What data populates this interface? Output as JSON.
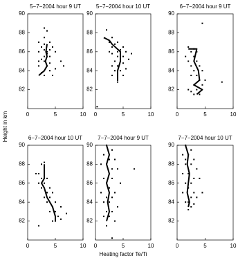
{
  "chart_data": [
    {
      "type": "scatter",
      "title": "5−7−2004 hour 9 UT",
      "xlim": [
        0,
        10
      ],
      "ylim": [
        80,
        90
      ],
      "xticks": [
        0,
        5,
        10
      ],
      "yticks": [
        82,
        84,
        86,
        88,
        90
      ],
      "color": "#000000",
      "x": [
        3,
        3.5,
        2,
        4,
        3,
        2.5,
        4.5,
        3,
        5,
        2,
        3.5,
        4,
        3,
        2.5,
        6,
        3,
        4,
        2,
        3.5,
        5,
        3,
        4,
        2.5,
        3,
        4.5,
        3,
        3.5,
        6.5,
        2,
        4
      ],
      "y": [
        88.5,
        88.2,
        87,
        87,
        86.8,
        86.5,
        86.5,
        86.2,
        86,
        86,
        85.8,
        85.5,
        85.5,
        85.2,
        85,
        85,
        84.8,
        84.5,
        84.5,
        84.2,
        84,
        84,
        83.8,
        83.5,
        83.5,
        87.5,
        86,
        84.5,
        85,
        86.2
      ],
      "line": {
        "x": [
          2,
          3,
          3.5,
          3.2,
          3.5,
          3.3,
          3.5
        ],
        "y": [
          83.5,
          84,
          84.5,
          85,
          85.5,
          86,
          86.8
        ]
      }
    },
    {
      "type": "scatter",
      "title": "5−7−2004 hour 10 UT",
      "xlim": [
        0,
        10
      ],
      "ylim": [
        80,
        90
      ],
      "xticks": [
        0,
        5,
        10
      ],
      "yticks": [
        82,
        84,
        86,
        88,
        90
      ],
      "color": "#000000",
      "x": [
        2,
        3,
        2.5,
        4,
        3.5,
        5,
        3,
        4.5,
        5.5,
        4,
        3,
        5,
        4,
        6,
        3.5,
        4.5,
        5,
        3,
        4,
        5.5,
        3.5,
        4.5,
        4,
        3,
        5,
        4,
        0.3,
        6.5,
        2.5,
        4
      ],
      "y": [
        88.3,
        87.5,
        87,
        87,
        86.8,
        86.5,
        86.5,
        86.2,
        86,
        86,
        85.8,
        85.5,
        85.5,
        85.2,
        85,
        85,
        84.8,
        84.5,
        84.5,
        84.2,
        84,
        84,
        83.8,
        83.5,
        83.5,
        83,
        80.2,
        85.8,
        86,
        82.8
      ],
      "line": {
        "x": [
          1.5,
          2.5,
          3,
          4.5,
          4.5,
          4,
          4
        ],
        "y": [
          87.5,
          87.2,
          86.8,
          86,
          85,
          84,
          83
        ]
      }
    },
    {
      "type": "scatter",
      "title": "6−7−2004 hour 9 UT",
      "xlim": [
        0,
        10
      ],
      "ylim": [
        80,
        90
      ],
      "xticks": [
        0,
        5,
        10
      ],
      "yticks": [
        82,
        84,
        86,
        88,
        90
      ],
      "color": "#000000",
      "x": [
        4.5,
        2,
        3,
        2.5,
        3.5,
        1.5,
        3,
        2,
        3.5,
        2.5,
        4,
        3,
        4.5,
        3.5,
        2.5,
        4,
        5,
        3,
        4.5,
        2,
        3.5,
        8,
        4,
        3,
        2.5
      ],
      "y": [
        89,
        86.5,
        86.3,
        86,
        86,
        85.5,
        85.5,
        85,
        85,
        84.5,
        84.5,
        84,
        84,
        83.5,
        83.5,
        83,
        83,
        82.5,
        82.5,
        82,
        82,
        82.8,
        81.5,
        81.5,
        81.8
      ],
      "line": {
        "x": [
          2,
          3.5,
          3,
          3.8,
          4,
          3,
          4.5,
          3.5
        ],
        "y": [
          86.3,
          86.3,
          85,
          84,
          83,
          82.5,
          82,
          81.5
        ]
      }
    },
    {
      "type": "scatter",
      "title": "6−7−2004 hour 10 UT",
      "ylabel": "Height in km",
      "xlim": [
        0,
        10
      ],
      "ylim": [
        80,
        90
      ],
      "xticks": [
        0,
        5,
        10
      ],
      "yticks": [
        82,
        84,
        86,
        88,
        90
      ],
      "color": "#000000",
      "x": [
        3,
        2.5,
        3,
        1.5,
        2,
        3,
        2.5,
        3.5,
        2,
        3,
        4,
        2.5,
        3.5,
        4.5,
        3,
        4,
        5,
        3.5,
        4.5,
        6,
        4,
        5,
        5.5,
        7,
        4.5,
        5,
        2,
        6
      ],
      "y": [
        88.2,
        88,
        87.5,
        87,
        87,
        86.8,
        86.5,
        86.5,
        86,
        86,
        85.5,
        85.5,
        85,
        85,
        84.5,
        84.5,
        84,
        84,
        83.5,
        83.5,
        83,
        83,
        82.5,
        82.8,
        82,
        82,
        81.5,
        82.2
      ],
      "line": {
        "x": [
          3,
          3,
          2.5,
          3,
          3.5,
          4.5,
          5,
          5
        ],
        "y": [
          88,
          86.5,
          86,
          85.5,
          84.5,
          83.5,
          82.5,
          82
        ]
      }
    },
    {
      "type": "scatter",
      "title": "7−7−2004 hour 9 UT",
      "xlabel": "Heating factor Te/Ti",
      "xlim": [
        0,
        10
      ],
      "ylim": [
        80,
        90
      ],
      "xticks": [
        0,
        5,
        10
      ],
      "yticks": [
        82,
        84,
        86,
        88,
        90
      ],
      "color": "#000000",
      "x": [
        2,
        3,
        1.5,
        2.5,
        3.5,
        1,
        2,
        3,
        4,
        2.5,
        1.5,
        3,
        2,
        4.5,
        2.5,
        1,
        3.5,
        2,
        3,
        1.5,
        2.5,
        4,
        2,
        3,
        1.5,
        2.5,
        3.5,
        2,
        7,
        3
      ],
      "y": [
        90,
        89.5,
        89,
        88.5,
        88.5,
        88,
        88,
        87.5,
        87.5,
        87,
        86.5,
        86.5,
        86,
        86,
        85.5,
        85,
        85,
        84.5,
        84.5,
        84,
        84,
        83.5,
        83,
        83,
        82.5,
        82.5,
        82,
        81.5,
        87.5,
        80.2
      ],
      "line": {
        "x": [
          2,
          2.5,
          2,
          2.5,
          2,
          2.5,
          2.2,
          2.5,
          2
        ],
        "y": [
          90,
          89,
          88,
          87,
          86,
          85,
          84,
          83,
          82
        ]
      }
    },
    {
      "type": "scatter",
      "title": "7−7−2004 hour 10 UT",
      "xlim": [
        0,
        10
      ],
      "ylim": [
        80,
        90
      ],
      "xticks": [
        0,
        5,
        10
      ],
      "yticks": [
        82,
        84,
        86,
        88,
        90
      ],
      "color": "#000000",
      "x": [
        1.5,
        2.5,
        1,
        2,
        3,
        1.5,
        2.5,
        3.5,
        1,
        2,
        3,
        4,
        1.5,
        2.5,
        2,
        3,
        1,
        2.5,
        3.5,
        2,
        1.5,
        3,
        2.5,
        2,
        4.5,
        1.5
      ],
      "y": [
        90,
        89.5,
        89,
        89,
        88.5,
        88,
        88,
        87.5,
        87,
        87,
        86.5,
        86.5,
        86,
        86,
        85.5,
        85,
        85,
        84.5,
        84.5,
        84,
        84,
        83.8,
        83.5,
        83.2,
        85,
        88.5
      ],
      "line": {
        "x": [
          1.5,
          2,
          1.8,
          2.2,
          2,
          1.8,
          2.2,
          2
        ],
        "y": [
          90,
          89,
          88,
          87,
          86,
          85,
          84,
          83.5
        ]
      }
    }
  ]
}
